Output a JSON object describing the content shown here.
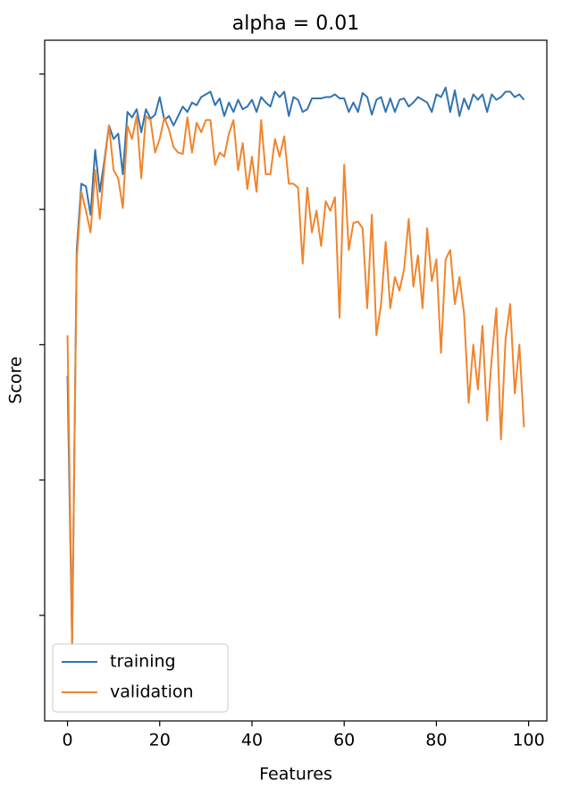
{
  "chart_data": {
    "type": "line",
    "title": "alpha = 0.01",
    "x_label": "Features",
    "y_label": "Score",
    "x": [
      0,
      1,
      2,
      3,
      4,
      5,
      6,
      7,
      8,
      9,
      10,
      11,
      12,
      13,
      14,
      15,
      16,
      17,
      18,
      19,
      20,
      21,
      22,
      23,
      24,
      25,
      26,
      27,
      28,
      29,
      30,
      31,
      32,
      33,
      34,
      35,
      36,
      37,
      38,
      39,
      40,
      41,
      42,
      43,
      44,
      45,
      46,
      47,
      48,
      49,
      50,
      51,
      52,
      53,
      54,
      55,
      56,
      57,
      58,
      59,
      60,
      61,
      62,
      63,
      64,
      65,
      66,
      67,
      68,
      69,
      70,
      71,
      72,
      73,
      74,
      75,
      76,
      77,
      78,
      79,
      80,
      81,
      82,
      83,
      84,
      85,
      86,
      87,
      88,
      89,
      90,
      91,
      92,
      93,
      94,
      95,
      96,
      97,
      98,
      99
    ],
    "series": [
      {
        "name": "training",
        "color": "#3274b0",
        "values": [
          1.77,
          -0.21,
          2.7,
          3.19,
          3.17,
          2.96,
          3.44,
          3.13,
          3.36,
          3.62,
          3.52,
          3.56,
          3.26,
          3.72,
          3.68,
          3.74,
          3.57,
          3.74,
          3.67,
          3.7,
          3.83,
          3.66,
          3.69,
          3.62,
          3.69,
          3.76,
          3.72,
          3.79,
          3.77,
          3.83,
          3.85,
          3.87,
          3.77,
          3.82,
          3.69,
          3.79,
          3.72,
          3.81,
          3.74,
          3.76,
          3.81,
          3.72,
          3.83,
          3.79,
          3.76,
          3.87,
          3.83,
          3.87,
          3.69,
          3.83,
          3.81,
          3.72,
          3.74,
          3.82,
          3.82,
          3.82,
          3.83,
          3.83,
          3.85,
          3.82,
          3.82,
          3.72,
          3.79,
          3.72,
          3.86,
          3.83,
          3.7,
          3.81,
          3.83,
          3.72,
          3.82,
          3.72,
          3.81,
          3.82,
          3.76,
          3.79,
          3.83,
          3.81,
          3.79,
          3.72,
          3.85,
          3.83,
          3.9,
          3.72,
          3.88,
          3.69,
          3.82,
          3.74,
          3.85,
          3.81,
          3.85,
          3.72,
          3.85,
          3.81,
          3.83,
          3.87,
          3.87,
          3.83,
          3.85,
          3.81
        ]
      },
      {
        "name": "validation",
        "color": "#f0852d",
        "values": [
          2.07,
          -0.21,
          2.63,
          3.13,
          2.99,
          2.83,
          3.29,
          2.93,
          3.33,
          3.62,
          3.29,
          3.23,
          3.01,
          3.62,
          3.52,
          3.69,
          3.23,
          3.69,
          3.66,
          3.42,
          3.52,
          3.68,
          3.59,
          3.46,
          3.42,
          3.41,
          3.68,
          3.42,
          3.64,
          3.57,
          3.66,
          3.66,
          3.33,
          3.42,
          3.39,
          3.56,
          3.66,
          3.29,
          3.49,
          3.15,
          3.39,
          3.13,
          3.66,
          3.26,
          3.26,
          3.52,
          3.39,
          3.54,
          3.19,
          3.19,
          3.16,
          2.6,
          3.16,
          2.83,
          2.99,
          2.73,
          3.06,
          2.99,
          3.09,
          2.2,
          3.33,
          2.7,
          2.9,
          2.91,
          2.86,
          2.27,
          2.96,
          2.07,
          2.3,
          2.76,
          2.27,
          2.5,
          2.4,
          2.56,
          2.93,
          2.43,
          2.66,
          2.27,
          2.86,
          2.47,
          2.63,
          1.94,
          2.63,
          2.7,
          2.3,
          2.5,
          2.23,
          1.57,
          2.0,
          1.67,
          2.14,
          1.44,
          1.9,
          2.27,
          1.3,
          2.04,
          2.3,
          1.64,
          2.0,
          1.39
        ]
      }
    ],
    "xlim": [
      -4.95,
      103.95
    ],
    "xticks": [
      0,
      20,
      40,
      60,
      80,
      100
    ],
    "ylim": [
      -0.78,
      4.25
    ],
    "yticks": [
      0,
      1,
      2,
      3,
      4
    ],
    "ytick_labels": false,
    "legend": "lower left"
  }
}
